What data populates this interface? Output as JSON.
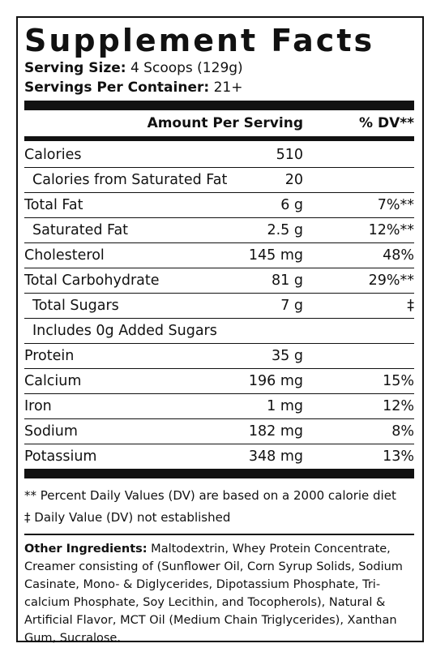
{
  "title": "Supplement Facts",
  "serving": {
    "size_label": "Serving Size:",
    "size_value": " 4 Scoops (129g)",
    "per_container_label": "Servings Per Container:",
    "per_container_value": " 21+"
  },
  "table_header": {
    "amount": "Amount Per Serving",
    "dv": "% DV**"
  },
  "nutrients": [
    {
      "name": "Calories",
      "amount": "510",
      "dv": ""
    },
    {
      "name": "Calories from Saturated Fat",
      "amount": "20",
      "dv": ""
    },
    {
      "name": "Total Fat",
      "amount": "6 g",
      "dv": "7%**"
    },
    {
      "name": "Saturated Fat",
      "amount": "2.5 g",
      "dv": "12%**"
    },
    {
      "name": "Cholesterol",
      "amount": "145 mg",
      "dv": "48%"
    },
    {
      "name": "Total Carbohydrate",
      "amount": "81 g",
      "dv": "29%**"
    },
    {
      "name": "Total Sugars",
      "amount": "7 g",
      "dv": "‡"
    },
    {
      "name": "Includes 0g Added Sugars",
      "amount": "",
      "dv": ""
    },
    {
      "name": "Protein",
      "amount": "35 g",
      "dv": ""
    },
    {
      "name": "Calcium",
      "amount": "196 mg",
      "dv": "15%"
    },
    {
      "name": "Iron",
      "amount": "1 mg",
      "dv": "12%"
    },
    {
      "name": "Sodium",
      "amount": "182 mg",
      "dv": "8%"
    },
    {
      "name": "Potassium",
      "amount": "348 mg",
      "dv": "13%"
    }
  ],
  "footnotes": {
    "dv_note": "** Percent Daily Values (DV) are based on a 2000 calorie diet",
    "not_established": "‡ Daily Value (DV) not established"
  },
  "ingredients": {
    "label": "Other Ingredients:",
    "text": " Maltodextrin, Whey Protein Concentrate, Creamer consisting of (Sunflower Oil, Corn Syrup Solids, Sodium Casinate, Mono- & Diglycerides, Dipotassium Phosphate, Tri-calcium Phosphate, Soy Lecithin, and Tocopherols), Natural & Artificial Flavor, MCT Oil (Medium Chain Triglycerides), Xanthan Gum, Sucralose."
  }
}
